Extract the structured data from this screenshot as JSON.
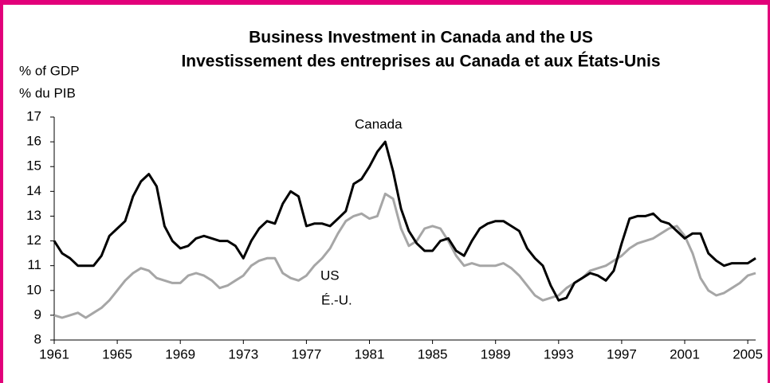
{
  "chart_data": {
    "type": "line",
    "title": "Business Investment in Canada and the US",
    "subtitle": "Investissement des entreprises au Canada et aux États-Unis",
    "y_label": "% of GDP",
    "y_label_fr": "% du PIB",
    "annotation": "É.-U.",
    "x": [
      1961,
      1961.5,
      1962,
      1962.5,
      1963,
      1963.5,
      1964,
      1964.5,
      1965,
      1965.5,
      1966,
      1966.5,
      1967,
      1967.5,
      1968,
      1968.5,
      1969,
      1969.5,
      1970,
      1970.5,
      1971,
      1971.5,
      1972,
      1972.5,
      1973,
      1973.5,
      1974,
      1974.5,
      1975,
      1975.5,
      1976,
      1976.5,
      1977,
      1977.5,
      1978,
      1978.5,
      1979,
      1979.5,
      1980,
      1980.5,
      1981,
      1981.5,
      1982,
      1982.5,
      1983,
      1983.5,
      1984,
      1984.5,
      1985,
      1985.5,
      1986,
      1986.5,
      1987,
      1987.5,
      1988,
      1988.5,
      1989,
      1989.5,
      1990,
      1990.5,
      1991,
      1991.5,
      1992,
      1992.5,
      1993,
      1993.5,
      1994,
      1994.5,
      1995,
      1995.5,
      1996,
      1996.5,
      1997,
      1997.5,
      1998,
      1998.5,
      1999,
      1999.5,
      2000,
      2000.5,
      2001,
      2001.5,
      2002,
      2002.5,
      2003,
      2003.5,
      2004,
      2004.5,
      2005,
      2005.5
    ],
    "series": [
      {
        "name": "Canada",
        "color": "#000000",
        "values": [
          12.0,
          11.5,
          11.3,
          11.0,
          11.0,
          11.0,
          11.4,
          12.2,
          12.5,
          12.8,
          13.8,
          14.4,
          14.7,
          14.2,
          12.6,
          12.0,
          11.7,
          11.8,
          12.1,
          12.2,
          12.1,
          12.0,
          12.0,
          11.8,
          11.3,
          12.0,
          12.5,
          12.8,
          12.7,
          13.5,
          14.0,
          13.8,
          12.6,
          12.7,
          12.7,
          12.6,
          12.9,
          13.2,
          14.3,
          14.5,
          15.0,
          15.6,
          16.0,
          14.8,
          13.3,
          12.4,
          11.9,
          11.6,
          11.6,
          12.0,
          12.1,
          11.6,
          11.4,
          12.0,
          12.5,
          12.7,
          12.8,
          12.8,
          12.6,
          12.4,
          11.7,
          11.3,
          11.0,
          10.2,
          9.6,
          9.7,
          10.3,
          10.5,
          10.7,
          10.6,
          10.4,
          10.8,
          11.9,
          12.9,
          13.0,
          13.0,
          13.1,
          12.8,
          12.7,
          12.4,
          12.1,
          12.3,
          12.3,
          11.5,
          11.2,
          11.0,
          11.1,
          11.1,
          11.1,
          11.3
        ]
      },
      {
        "name": "US",
        "color": "#a6a6a6",
        "values": [
          9.0,
          8.9,
          9.0,
          9.1,
          8.9,
          9.1,
          9.3,
          9.6,
          10.0,
          10.4,
          10.7,
          10.9,
          10.8,
          10.5,
          10.4,
          10.3,
          10.3,
          10.6,
          10.7,
          10.6,
          10.4,
          10.1,
          10.2,
          10.4,
          10.6,
          11.0,
          11.2,
          11.3,
          11.3,
          10.7,
          10.5,
          10.4,
          10.6,
          11.0,
          11.3,
          11.7,
          12.3,
          12.8,
          13.0,
          13.1,
          12.9,
          13.0,
          13.9,
          13.7,
          12.5,
          11.8,
          12.0,
          12.5,
          12.6,
          12.5,
          12.0,
          11.4,
          11.0,
          11.1,
          11.0,
          11.0,
          11.0,
          11.1,
          10.9,
          10.6,
          10.2,
          9.8,
          9.6,
          9.7,
          9.8,
          10.1,
          10.3,
          10.5,
          10.8,
          10.9,
          11.0,
          11.2,
          11.4,
          11.7,
          11.9,
          12.0,
          12.1,
          12.3,
          12.5,
          12.6,
          12.2,
          11.5,
          10.5,
          10.0,
          9.8,
          9.9,
          10.1,
          10.3,
          10.6,
          10.7
        ]
      }
    ],
    "xlim": [
      1961,
      2005.5
    ],
    "xticks": [
      1961,
      1965,
      1969,
      1973,
      1977,
      1981,
      1985,
      1989,
      1993,
      1997,
      2001,
      2005
    ],
    "ylim": [
      8,
      17
    ],
    "yticks": [
      8,
      9,
      10,
      11,
      12,
      13,
      14,
      15,
      16,
      17
    ]
  }
}
